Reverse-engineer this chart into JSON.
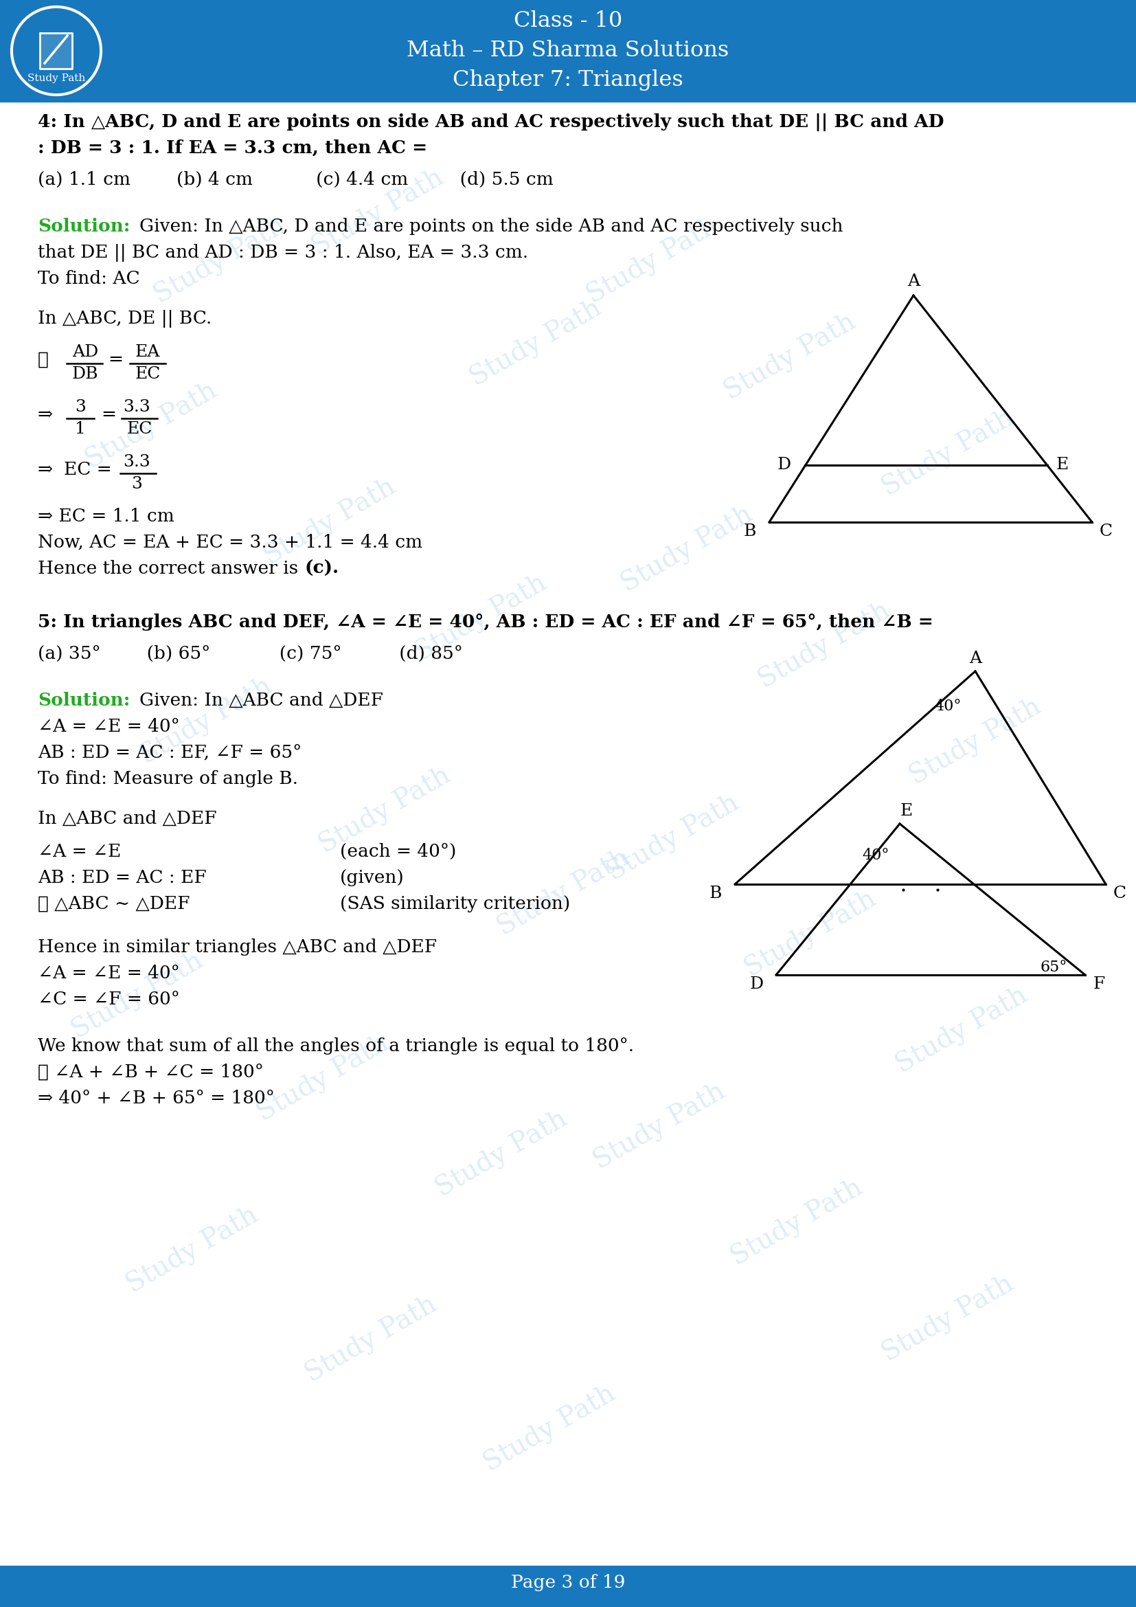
{
  "header_bg_color": "#1878be",
  "footer_bg_color": "#1878be",
  "body_bg_color": "#ffffff",
  "solution_color": "#22aa22",
  "watermark_color": "#c5dff0",
  "page_width": 16.54,
  "page_height": 23.39,
  "header_lines": [
    "Class - 10",
    "Math – RD Sharma Solutions",
    "Chapter 7: Triangles"
  ],
  "footer_text": "Page 3 of 19",
  "q4_line1": "4: In △ABC, D and E are points on side AB and AC respectively such that DE || BC and AD",
  "q4_line2": ": DB = 3 : 1. If EA = 3.3 cm, then AC =",
  "q4_options": "(a) 1.1 cm        (b) 4 cm           (c) 4.4 cm         (d) 5.5 cm",
  "q5_line1": "5: In triangles ABC and DEF, ∠A = ∠E = 40°, AB : ED = AC : EF and ∠F = 65°, then ∠B =",
  "q5_options": "(a) 35°        (b) 65°            (c) 75°          (d) 85°"
}
